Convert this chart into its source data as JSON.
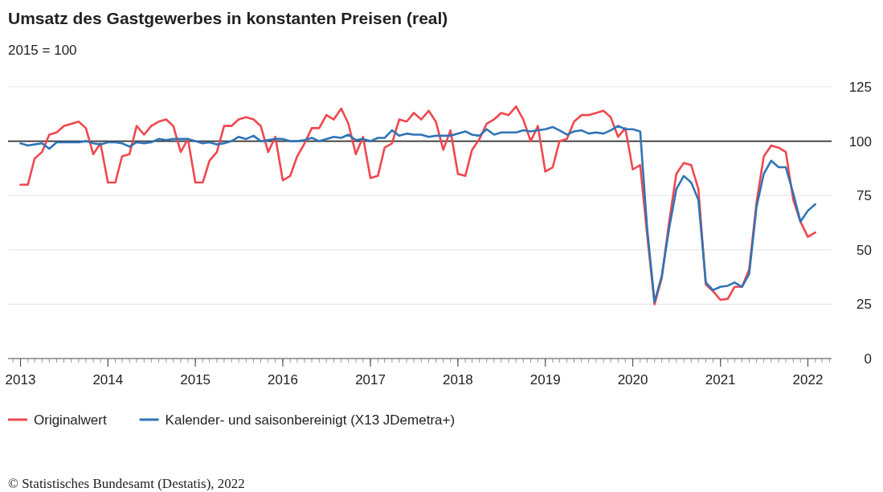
{
  "chart_data": {
    "type": "line",
    "title": "Umsatz des Gastgewerbes in konstanten Preisen (real)",
    "subtitle": "2015 = 100",
    "annotations": [
      "© Statistisches Bundesamt (Destatis), 2022"
    ],
    "xlim": [
      "2012-11-10",
      "2022-04-10"
    ],
    "xticks": [
      {
        "value": "2013-01",
        "label": "2013"
      },
      {
        "value": "2014-01",
        "label": "2014"
      },
      {
        "value": "2015-01",
        "label": "2015"
      },
      {
        "value": "2016-01",
        "label": "2016"
      },
      {
        "value": "2017-01",
        "label": "2017"
      },
      {
        "value": "2018-01",
        "label": "2018"
      },
      {
        "value": "2019-01",
        "label": "2019"
      },
      {
        "value": "2020-01",
        "label": "2020"
      },
      {
        "value": "2021-01",
        "label": "2021"
      },
      {
        "value": "2022-01",
        "label": "2022"
      }
    ],
    "ylim": [
      0,
      125
    ],
    "yticks": [
      0,
      25,
      50,
      75,
      100,
      125
    ],
    "grid": "y",
    "legend": "bottom left",
    "marker": "none",
    "line_style": "solid",
    "ref_lines": [
      {
        "axis": "y",
        "value": 100,
        "label": null,
        "color": "#333333"
      }
    ],
    "series": [
      {
        "name": "Originalwert",
        "color": "#f0474f",
        "values": [
          80,
          80,
          92,
          95,
          103,
          104,
          107,
          108,
          109,
          106,
          94,
          99,
          81,
          81,
          93,
          94,
          107,
          103,
          107,
          109,
          110,
          107,
          95,
          101,
          81,
          81,
          91,
          95,
          107,
          107,
          110,
          111,
          110,
          107,
          95,
          102,
          82,
          84,
          93,
          99,
          106,
          106,
          112,
          110,
          115,
          108,
          94,
          102,
          83,
          84,
          97,
          99,
          110,
          109,
          113,
          110,
          114,
          109,
          96,
          105,
          85,
          84,
          96,
          101,
          108,
          110,
          113,
          112,
          116,
          110,
          100,
          107,
          86,
          88,
          100,
          101,
          109,
          112,
          112,
          113,
          114,
          111,
          102,
          106,
          87,
          89,
          57,
          25,
          37,
          63,
          85,
          90,
          89,
          78,
          34,
          31,
          27,
          27.5,
          33,
          33,
          41,
          72,
          93,
          98,
          97,
          95,
          73,
          63,
          56,
          58
        ]
      },
      {
        "name": "Kalender- und saisonbereinigt (X13 JDemetra+)",
        "color": "#2f74b5",
        "values": [
          99,
          98,
          98.5,
          99,
          96.5,
          99.5,
          99.5,
          99.5,
          99.5,
          100,
          99,
          98.5,
          99.5,
          99.5,
          99,
          97.5,
          99.5,
          99,
          99.5,
          101,
          100.5,
          101,
          101,
          101,
          100,
          99,
          99.5,
          98.5,
          99,
          100,
          102,
          101,
          102.5,
          100,
          100.5,
          101,
          101,
          100,
          100,
          100.5,
          101.5,
          100,
          101,
          102,
          101.5,
          103,
          100.5,
          101,
          100,
          101.5,
          101.5,
          105,
          102.5,
          103.5,
          103,
          103,
          102,
          102.5,
          102.5,
          102.5,
          103.5,
          104.5,
          103,
          102.5,
          105.5,
          103,
          104,
          104,
          104,
          105,
          104.5,
          105,
          105.5,
          106.5,
          105,
          103,
          104.5,
          105,
          103.5,
          104,
          103.5,
          105,
          107,
          105.5,
          105.5,
          104.5,
          60,
          26,
          38,
          60,
          78,
          84,
          81,
          73,
          35,
          31.5,
          33,
          33.5,
          35,
          33,
          39,
          70,
          85,
          91,
          88,
          88,
          76,
          63,
          68,
          71
        ]
      }
    ],
    "x": [
      "2013-01",
      "2013-02",
      "2013-03",
      "2013-04",
      "2013-05",
      "2013-06",
      "2013-07",
      "2013-08",
      "2013-09",
      "2013-10",
      "2013-11",
      "2013-12",
      "2014-01",
      "2014-02",
      "2014-03",
      "2014-04",
      "2014-05",
      "2014-06",
      "2014-07",
      "2014-08",
      "2014-09",
      "2014-10",
      "2014-11",
      "2014-12",
      "2015-01",
      "2015-02",
      "2015-03",
      "2015-04",
      "2015-05",
      "2015-06",
      "2015-07",
      "2015-08",
      "2015-09",
      "2015-10",
      "2015-11",
      "2015-12",
      "2016-01",
      "2016-02",
      "2016-03",
      "2016-04",
      "2016-05",
      "2016-06",
      "2016-07",
      "2016-08",
      "2016-09",
      "2016-10",
      "2016-11",
      "2016-12",
      "2017-01",
      "2017-02",
      "2017-03",
      "2017-04",
      "2017-05",
      "2017-06",
      "2017-07",
      "2017-08",
      "2017-09",
      "2017-10",
      "2017-11",
      "2017-12",
      "2018-01",
      "2018-02",
      "2018-03",
      "2018-04",
      "2018-05",
      "2018-06",
      "2018-07",
      "2018-08",
      "2018-09",
      "2018-10",
      "2018-11",
      "2018-12",
      "2019-01",
      "2019-02",
      "2019-03",
      "2019-04",
      "2019-05",
      "2019-06",
      "2019-07",
      "2019-08",
      "2019-09",
      "2019-10",
      "2019-11",
      "2019-12",
      "2020-01",
      "2020-02",
      "2020-03",
      "2020-04",
      "2020-05",
      "2020-06",
      "2020-07",
      "2020-08",
      "2020-09",
      "2020-10",
      "2020-11",
      "2020-12",
      "2021-01",
      "2021-02",
      "2021-03",
      "2021-04",
      "2021-05",
      "2021-06",
      "2021-07",
      "2021-08",
      "2021-09",
      "2021-10",
      "2021-11",
      "2021-12",
      "2022-01",
      "2022-02"
    ]
  }
}
